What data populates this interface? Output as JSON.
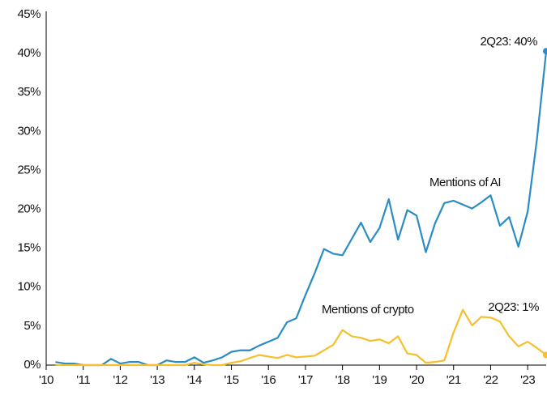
{
  "chart_data": {
    "type": "line",
    "x": [
      2010.25,
      2010.5,
      2010.75,
      2011,
      2011.25,
      2011.5,
      2011.75,
      2012,
      2012.25,
      2012.5,
      2012.75,
      2013,
      2013.25,
      2013.5,
      2013.75,
      2014,
      2014.25,
      2014.5,
      2014.75,
      2015,
      2015.25,
      2015.5,
      2015.75,
      2016,
      2016.25,
      2016.5,
      2016.75,
      2017,
      2017.25,
      2017.5,
      2017.75,
      2018,
      2018.25,
      2018.5,
      2018.75,
      2019,
      2019.25,
      2019.5,
      2019.75,
      2020,
      2020.25,
      2020.5,
      2020.75,
      2021,
      2021.25,
      2021.5,
      2021.75,
      2022,
      2022.25,
      2022.5,
      2022.75,
      2023,
      2023.25,
      2023.5
    ],
    "series": [
      {
        "name": "Mentions of AI",
        "color": "#2b8cc4",
        "values": [
          0.4,
          0.2,
          0.2,
          0,
          0,
          0,
          0.8,
          0.2,
          0.4,
          0.4,
          0,
          0,
          0.6,
          0.4,
          0.4,
          1.0,
          0.3,
          0.6,
          1.0,
          1.7,
          1.9,
          1.9,
          2.5,
          3.0,
          3.5,
          5.5,
          6.0,
          9.0,
          11.8,
          14.9,
          14.3,
          14.1,
          16.2,
          18.3,
          15.8,
          17.6,
          21.3,
          16.1,
          19.9,
          19.2,
          14.5,
          18.2,
          20.8,
          21.1,
          20.6,
          20.1,
          20.9,
          21.8,
          17.9,
          19.0,
          15.2,
          19.7,
          29,
          40.3
        ]
      },
      {
        "name": "Mentions of crypto",
        "color": "#f5c02c",
        "values": [
          0,
          0,
          0,
          0,
          0,
          0,
          0,
          0,
          0,
          0,
          0,
          0,
          0,
          0,
          0,
          0.3,
          0.1,
          0,
          0,
          0.3,
          0.5,
          0.9,
          1.3,
          1.1,
          0.9,
          1.3,
          1.0,
          1.1,
          1.2,
          1.9,
          2.6,
          4.5,
          3.7,
          3.5,
          3.1,
          3.3,
          2.8,
          3.7,
          1.5,
          1.3,
          0.3,
          0.4,
          0.6,
          4.2,
          7.1,
          5.1,
          6.2,
          6.1,
          5.6,
          3.7,
          2.4,
          3.0,
          2.2,
          1.3
        ]
      }
    ],
    "annotations": [
      "2Q23: 40%",
      "2Q23: 1%"
    ],
    "xlim": [
      2010,
      2023.5
    ],
    "xticks": [
      {
        "value": 2010,
        "label": "'10"
      },
      {
        "value": 2011,
        "label": "'11"
      },
      {
        "value": 2012,
        "label": "'12"
      },
      {
        "value": 2013,
        "label": "'13"
      },
      {
        "value": 2014,
        "label": "'14"
      },
      {
        "value": 2015,
        "label": "'15"
      },
      {
        "value": 2016,
        "label": "'16"
      },
      {
        "value": 2017,
        "label": "'17"
      },
      {
        "value": 2018,
        "label": "'18"
      },
      {
        "value": 2019,
        "label": "'19"
      },
      {
        "value": 2020,
        "label": "'20"
      },
      {
        "value": 2021,
        "label": "'21"
      },
      {
        "value": 2022,
        "label": "'22"
      },
      {
        "value": 2023,
        "label": "'23"
      }
    ],
    "ylim": [
      0,
      45
    ],
    "yticks": [
      {
        "value": 0,
        "label": "0%"
      },
      {
        "value": 5,
        "label": "5%"
      },
      {
        "value": 10,
        "label": "10%"
      },
      {
        "value": 15,
        "label": "15%"
      },
      {
        "value": 20,
        "label": "20%"
      },
      {
        "value": 25,
        "label": "25%"
      },
      {
        "value": 30,
        "label": "30%"
      },
      {
        "value": 35,
        "label": "35%"
      },
      {
        "value": 40,
        "label": "40%"
      },
      {
        "value": 45,
        "label": "45%"
      }
    ],
    "grid": false
  }
}
